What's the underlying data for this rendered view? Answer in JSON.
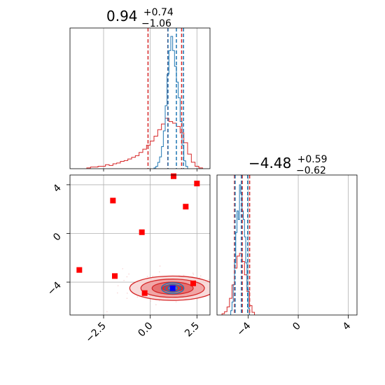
{
  "chart_data": [
    {
      "type": "histogram",
      "panel": "top-left",
      "title": {
        "value": "0.94",
        "plus": "+0.74",
        "minus": "−1.06"
      },
      "xlim": [
        -4.3,
        3.2
      ],
      "grid": true,
      "colors": {
        "wide": "#d62728",
        "narrow": "#1f77b4"
      },
      "wide_hist": {
        "edges": [
          -3.4,
          -3.2,
          -3.0,
          -2.8,
          -2.6,
          -2.4,
          -2.2,
          -2.0,
          -1.8,
          -1.6,
          -1.4,
          -1.2,
          -1.0,
          -0.8,
          -0.6,
          -0.4,
          -0.2,
          0.0,
          0.2,
          0.4,
          0.6,
          0.8,
          1.0,
          1.2,
          1.4,
          1.6,
          1.8,
          2.0,
          2.2,
          2.4,
          2.6,
          2.8
        ],
        "counts": [
          1,
          2,
          2,
          3,
          3,
          5,
          4,
          6,
          7,
          9,
          10,
          12,
          14,
          16,
          20,
          24,
          29,
          34,
          40,
          48,
          55,
          62,
          58,
          56,
          52,
          44,
          32,
          18,
          8,
          3,
          1
        ]
      },
      "narrow_hist": {
        "edges": [
          0.2,
          0.3,
          0.4,
          0.5,
          0.6,
          0.7,
          0.8,
          0.9,
          1.0,
          1.1,
          1.2,
          1.3,
          1.4,
          1.5,
          1.6,
          1.7,
          1.8,
          1.9,
          2.0
        ],
        "counts": [
          1,
          3,
          8,
          15,
          28,
          48,
          80,
          120,
          150,
          168,
          150,
          130,
          110,
          90,
          60,
          30,
          10,
          3
        ]
      },
      "quantiles_wide": [
        -0.12,
        0.94,
        1.68
      ],
      "quantiles_narrow": [
        0.95,
        1.4,
        1.78
      ]
    },
    {
      "type": "histogram",
      "panel": "bottom-right",
      "title": {
        "value": "−4.48",
        "plus": "+0.59",
        "minus": "−0.62"
      },
      "xlim": [
        -6.5,
        4.7
      ],
      "xticks": [
        "−4",
        "0",
        "4"
      ],
      "grid": true,
      "colors": {
        "wide": "#d62728",
        "narrow": "#1f77b4"
      },
      "wide_hist": {
        "edges": [
          -6.1,
          -5.9,
          -5.7,
          -5.5,
          -5.3,
          -5.1,
          -4.9,
          -4.7,
          -4.5,
          -4.3,
          -4.1,
          -3.9,
          -3.7,
          -3.5
        ],
        "counts": [
          2,
          5,
          12,
          25,
          45,
          70,
          88,
          92,
          80,
          60,
          35,
          14,
          4
        ]
      },
      "narrow_hist": {
        "edges": [
          -5.4,
          -5.3,
          -5.2,
          -5.1,
          -5.0,
          -4.9,
          -4.8,
          -4.7,
          -4.6,
          -4.5,
          -4.4,
          -4.3,
          -4.2,
          -4.1,
          -4.0,
          -3.9
        ],
        "counts": [
          5,
          15,
          35,
          60,
          95,
          120,
          110,
          150,
          140,
          120,
          110,
          90,
          60,
          30,
          8
        ]
      },
      "quantiles_wide": [
        -5.1,
        -4.48,
        -3.89
      ],
      "quantiles_narrow": [
        -5.05,
        -4.55,
        -4.05
      ]
    },
    {
      "type": "scatter",
      "panel": "bottom-left",
      "xlim": [
        -4.3,
        3.2
      ],
      "ylim": [
        -6.7,
        4.8
      ],
      "xticks": [
        "−2.5",
        "0.0",
        "2.5"
      ],
      "yticks": [
        "4",
        "0",
        "−4"
      ],
      "grid": true,
      "contour_center": [
        1.2,
        -4.5
      ],
      "contour_levels_wide": [
        [
          2.3,
          1.0
        ],
        [
          1.7,
          0.75
        ],
        [
          1.1,
          0.5
        ],
        [
          0.55,
          0.28
        ]
      ],
      "contour_levels_narrow": [
        [
          0.6,
          0.45
        ],
        [
          0.42,
          0.32
        ],
        [
          0.25,
          0.2
        ]
      ],
      "truth": [
        1.2,
        -4.5
      ],
      "red_points": [
        {
          "x": 1.25,
          "y": 4.7
        },
        {
          "x": 2.5,
          "y": 4.1
        },
        {
          "x": -2.0,
          "y": 2.7
        },
        {
          "x": 1.9,
          "y": 2.2
        },
        {
          "x": -0.45,
          "y": 0.1
        },
        {
          "x": -3.8,
          "y": -3.0
        },
        {
          "x": -1.9,
          "y": -3.5
        },
        {
          "x": -0.3,
          "y": -4.9
        },
        {
          "x": 2.3,
          "y": -4.1
        }
      ]
    }
  ]
}
